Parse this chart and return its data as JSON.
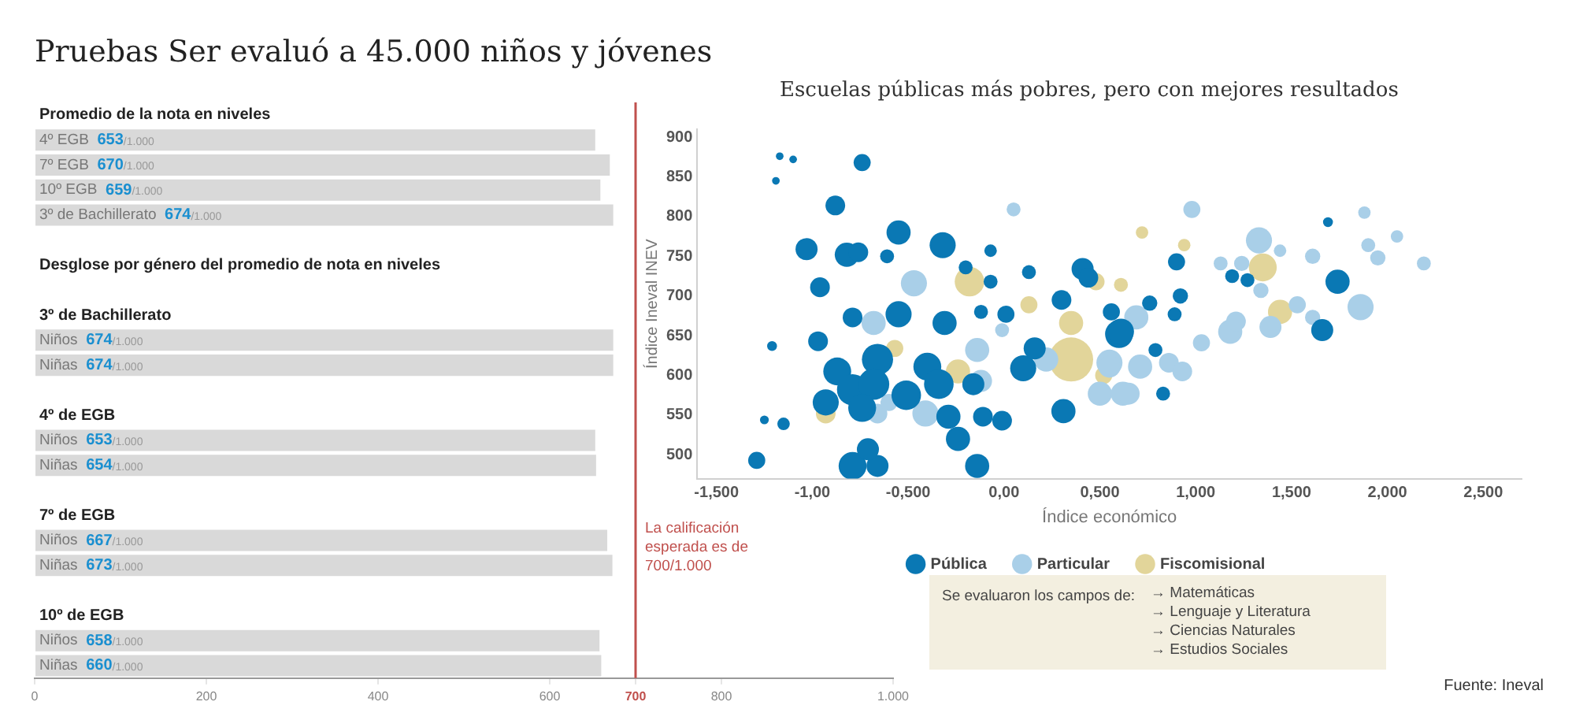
{
  "chart_data": [
    {
      "type": "bar",
      "orientation": "horizontal",
      "title": "Pruebas Ser evaluó a 45.000 niños y jóvenes",
      "categories": [
        "Promedio de la nota en niveles",
        "4º EGB",
        "7º EGB",
        "10º EGB",
        "3º de Bachillerato",
        null,
        "Desglose por género del promedio de nota en niveles",
        null,
        "3º de Bachillerato",
        "Niños",
        "Niñas",
        null,
        "4º de EGB",
        "Niños",
        "Niñas",
        null,
        "7º de EGB",
        "Niños",
        "Niñas",
        null,
        "10º de EGB",
        "Niños",
        "Niñas"
      ],
      "values": [
        null,
        653,
        670,
        659,
        674,
        null,
        null,
        null,
        null,
        674,
        674,
        null,
        null,
        653,
        654,
        null,
        null,
        667,
        673,
        null,
        null,
        658,
        660
      ],
      "value_labels": [
        null,
        "653/1.000",
        "670/1.000",
        "659/1.000",
        "674/1.000",
        null,
        null,
        null,
        null,
        "674/1.000",
        "674/1.000",
        null,
        null,
        "653/1.000",
        "654/1.000",
        null,
        null,
        "667/1.000",
        "673/1.000",
        null,
        null,
        "658/1.000",
        "660/1.000"
      ],
      "color": "#d9d9d9",
      "xlim": [
        0,
        1000
      ],
      "xticks": [
        0,
        200,
        400,
        600,
        700,
        800,
        {
          "value": 1000,
          "label": "1.000"
        }
      ],
      "tick_labels": "x",
      "ref_lines": [
        {
          "axis": "x",
          "value": 700,
          "label": "La calificación esperada es de 700/1.000",
          "color": "#c0504d"
        }
      ]
    },
    {
      "type": "bubble",
      "title": "Escuelas públicas más pobres, pero con mejores resultados",
      "xlabel": "Índice económico",
      "ylabel": "Índice Ineval INEV",
      "series": [
        {
          "name": "Pública",
          "color": "#0a78b4",
          "x": [
            -1.29,
            -0.74,
            -0.88,
            -0.55,
            -0.32,
            -1.03,
            -0.82,
            -0.76,
            -0.61,
            -0.96,
            -0.55,
            -0.79,
            -0.97,
            -0.31,
            -0.66,
            -0.87,
            -0.79,
            -0.68,
            -0.51,
            -0.4,
            -0.34,
            -0.93,
            -0.74,
            -0.79,
            -0.66,
            -0.14,
            -0.24,
            -0.71,
            -0.29,
            -0.11,
            -0.01,
            -0.16,
            0.1,
            0.16,
            0.31,
            0.3,
            0.41,
            0.44,
            0.6,
            0.01,
            -0.12,
            0.13,
            -0.07,
            -0.07,
            -0.2,
            0.9,
            0.92,
            0.76,
            0.56,
            0.61,
            0.79,
            0.83,
            1.27,
            1.19,
            1.74,
            1.66,
            1.69,
            0.89,
            -1.17,
            -1.1,
            -1.19,
            -1.21,
            -1.25,
            -1.15
          ],
          "values": [
            493,
            868,
            814,
            780,
            764,
            759,
            752,
            755,
            750,
            711,
            677,
            673,
            643,
            666,
            620,
            605,
            582,
            589,
            575,
            611,
            589,
            566,
            559,
            486,
            486,
            486,
            520,
            507,
            548,
            548,
            543,
            589,
            609,
            634,
            555,
            695,
            734,
            723,
            652,
            677,
            680,
            730,
            718,
            757,
            736,
            743,
            700,
            691,
            680,
            655,
            632,
            577,
            720,
            725,
            718,
            657,
            793,
            677,
            876,
            872,
            845,
            637,
            544,
            539
          ],
          "sizes": [
            0.15,
            0.15,
            0.2,
            0.3,
            0.35,
            0.25,
            0.3,
            0.2,
            0.1,
            0.2,
            0.35,
            0.2,
            0.2,
            0.3,
            0.5,
            0.4,
            0.5,
            0.5,
            0.45,
            0.4,
            0.45,
            0.35,
            0.4,
            0.4,
            0.25,
            0.3,
            0.3,
            0.25,
            0.3,
            0.2,
            0.2,
            0.25,
            0.35,
            0.25,
            0.3,
            0.2,
            0.25,
            0.2,
            0.4,
            0.15,
            0.1,
            0.1,
            0.1,
            0.08,
            0.1,
            0.15,
            0.12,
            0.12,
            0.15,
            0.35,
            0.1,
            0.1,
            0.1,
            0.1,
            0.3,
            0.25,
            0.05,
            0.1,
            0.03,
            0.03,
            0.03,
            0.05,
            0.04,
            0.08
          ]
        },
        {
          "name": "Particular",
          "color": "#a9cfe8",
          "x": [
            -0.47,
            -0.68,
            -0.41,
            -0.14,
            -0.12,
            0.22,
            0.5,
            0.62,
            0.55,
            -0.66,
            0.05,
            -0.6,
            -0.01,
            0.98,
            1.33,
            1.86,
            0.69,
            0.71,
            0.55,
            0.65,
            0.86,
            0.93,
            1.03,
            1.18,
            1.21,
            1.39,
            1.53,
            1.61,
            1.61,
            1.9,
            1.95,
            2.05,
            2.19,
            1.88,
            1.24,
            1.13,
            1.34,
            1.44
          ],
          "values": [
            716,
            666,
            552,
            632,
            593,
            620,
            577,
            577,
            616,
            552,
            809,
            566,
            657,
            809,
            770,
            686,
            673,
            611,
            611,
            577,
            616,
            605,
            641,
            655,
            668,
            661,
            689,
            750,
            673,
            764,
            748,
            775,
            741,
            805,
            741,
            741,
            707,
            757
          ],
          "sizes": [
            0.35,
            0.3,
            0.35,
            0.3,
            0.25,
            0.3,
            0.3,
            0.3,
            0.35,
            0.2,
            0.1,
            0.15,
            0.1,
            0.15,
            0.35,
            0.35,
            0.3,
            0.3,
            0.25,
            0.25,
            0.2,
            0.2,
            0.15,
            0.3,
            0.2,
            0.25,
            0.15,
            0.12,
            0.12,
            0.1,
            0.12,
            0.08,
            0.1,
            0.08,
            0.12,
            0.1,
            0.12,
            0.08
          ]
        },
        {
          "name": "Fiscomisional",
          "color": "#e2d59a",
          "x": [
            -0.18,
            0.35,
            -0.24,
            -0.93,
            0.35,
            0.48,
            0.13,
            -0.57,
            1.35,
            1.44,
            0.72,
            0.94,
            0.61,
            0.52
          ],
          "values": [
            718,
            620,
            605,
            552,
            666,
            718,
            689,
            634,
            736,
            680,
            780,
            764,
            714,
            600
          ],
          "sizes": [
            0.45,
            1,
            0.3,
            0.2,
            0.3,
            0.15,
            0.15,
            0.15,
            0.4,
            0.3,
            0.08,
            0.08,
            0.1,
            0.15
          ]
        }
      ],
      "xlim": [
        -1.6,
        2.7
      ],
      "xticks": [
        {
          "value": -1.5,
          "label": "-1,500"
        },
        {
          "value": -1,
          "label": "-1,00"
        },
        {
          "value": -0.5,
          "label": "-0,500"
        },
        {
          "value": 0,
          "label": "0,00"
        },
        {
          "value": 0.5,
          "label": "0,500"
        },
        {
          "value": 1,
          "label": "1,000"
        },
        {
          "value": 1.5,
          "label": "1,500"
        },
        {
          "value": 2,
          "label": "2,000"
        },
        {
          "value": 2.5,
          "label": "2,500"
        }
      ],
      "ylim": [
        470,
        910
      ],
      "yticks": [
        500,
        550,
        600,
        650,
        700,
        750,
        800,
        850,
        900
      ],
      "legend": "bottom",
      "annotations": [
        "Se evaluaron los campos de:",
        "→ Matemáticas",
        "→ Lenguaje y Literatura",
        "→ Ciencias Naturales",
        "→ Estudios Sociales",
        "Fuente: Ineval"
      ]
    }
  ]
}
